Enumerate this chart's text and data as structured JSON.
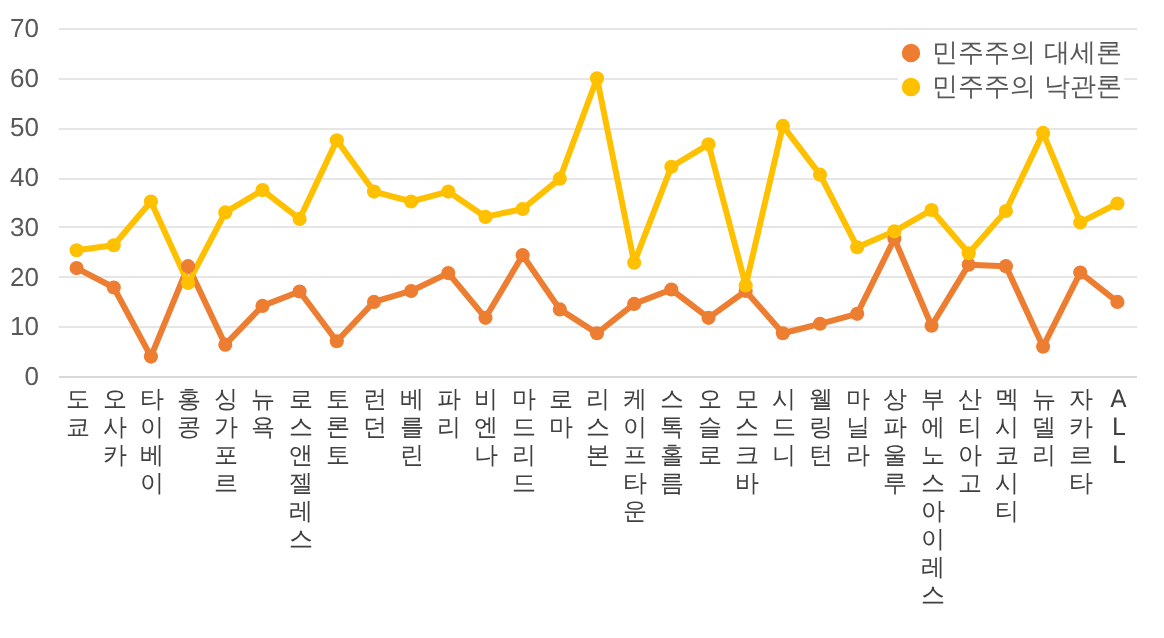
{
  "chart_data": {
    "type": "line",
    "categories": [
      "도쿄",
      "오사카",
      "타이베이",
      "홍콩",
      "싱가포르",
      "뉴욕",
      "로스 앤젤레스",
      "토론토",
      "런던",
      "베를린",
      "파리",
      "비엔나",
      "마드리드",
      "로마",
      "리스본",
      "케이프 타운",
      "스톡홀름",
      "오슬로",
      "모스크바",
      "시드니",
      "웰링턴",
      "마닐라",
      "상파울루",
      "부에노스 아이레스",
      "산티아고",
      "멕시코 시티",
      "뉴 델리",
      "자카르타",
      "ALL"
    ],
    "series": [
      {
        "name": "민주주의 대세론",
        "color": "#ed7d31",
        "values": [
          21.7,
          17.8,
          3.9,
          22.1,
          6.3,
          14.1,
          17,
          7,
          14.9,
          17.1,
          20.7,
          11.7,
          24.3,
          13.4,
          8.6,
          14.5,
          17.4,
          11.7,
          17.1,
          8.6,
          10.5,
          12.5,
          27.6,
          10.1,
          22.4,
          22.1,
          5.9,
          20.8,
          14.9
        ]
      },
      {
        "name": "민주주의 낙관론",
        "color": "#ffc000",
        "values": [
          25.3,
          26.3,
          35.1,
          18.7,
          32.9,
          37.4,
          31.6,
          47.4,
          37.1,
          35.1,
          37.1,
          32,
          33.6,
          39.7,
          59.9,
          22.8,
          42.1,
          46.6,
          18.2,
          50.3,
          40.5,
          25.9,
          29.1,
          33.4,
          24.7,
          33.2,
          48.9,
          30.9,
          34.7
        ]
      }
    ],
    "ylim": [
      0,
      70
    ],
    "yticks": [
      0,
      10,
      20,
      30,
      40,
      50,
      60,
      70
    ],
    "grid": "y",
    "legend": "top right",
    "marker": "circle",
    "line_style": "solid"
  }
}
